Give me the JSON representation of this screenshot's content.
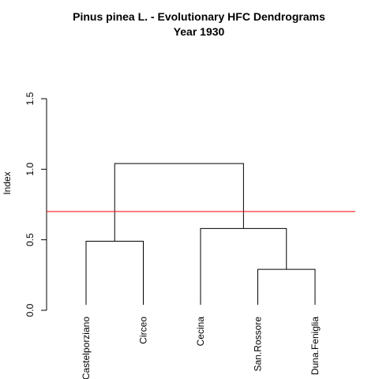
{
  "chart_data": {
    "type": "dendrogram",
    "title": "Pinus pinea L. - Evolutionary HFC Dendrograms",
    "subtitle": "Year  1930",
    "ylabel": "Index",
    "ylim": [
      0,
      1.5
    ],
    "yticks": [
      {
        "value": 0.0,
        "label": "0.0"
      },
      {
        "value": 0.5,
        "label": "0.5"
      },
      {
        "value": 1.0,
        "label": "1.0"
      },
      {
        "value": 1.5,
        "label": "1.5"
      }
    ],
    "leaves": [
      "Castelporziano",
      "Circeo",
      "Cecina",
      "San.Rossore",
      "Duna.Feniglia"
    ],
    "merges": [
      {
        "id": "m1",
        "left": "Castelporziano",
        "right": "Circeo",
        "height": 0.49
      },
      {
        "id": "m2",
        "left": "San.Rossore",
        "right": "Duna.Feniglia",
        "height": 0.29
      },
      {
        "id": "m3",
        "left": "Cecina",
        "right": "m2",
        "height": 0.58
      },
      {
        "id": "m4",
        "left": "m1",
        "right": "m3",
        "height": 1.04
      }
    ],
    "cut_line": {
      "value": 0.7,
      "color": "#ff0000"
    },
    "line_color": "#000000",
    "grid": false,
    "legend": "none"
  }
}
